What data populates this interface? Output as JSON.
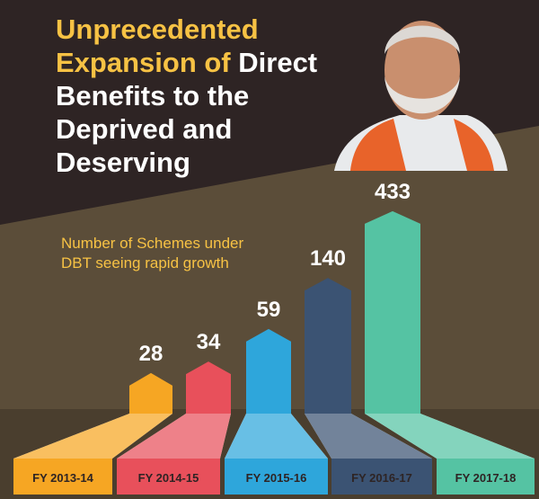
{
  "title": {
    "line1": "Unprecedented",
    "line2a": "Expansion of",
    "line2b": "Direct",
    "line3": "Benefits to the",
    "line4": "Deprived and",
    "line5": "Deserving"
  },
  "chart_data": {
    "type": "bar",
    "subtitle": [
      "Number of Schemes under",
      "DBT seeing rapid growth"
    ],
    "categories": [
      "FY 2013-14",
      "FY 2014-15",
      "FY 2015-16",
      "FY 2016-17",
      "FY 2017-18"
    ],
    "values": [
      28,
      34,
      59,
      140,
      433
    ],
    "colors": [
      "#f6a623",
      "#e8505b",
      "#2ea6db",
      "#3b5373",
      "#55c3a3"
    ]
  }
}
